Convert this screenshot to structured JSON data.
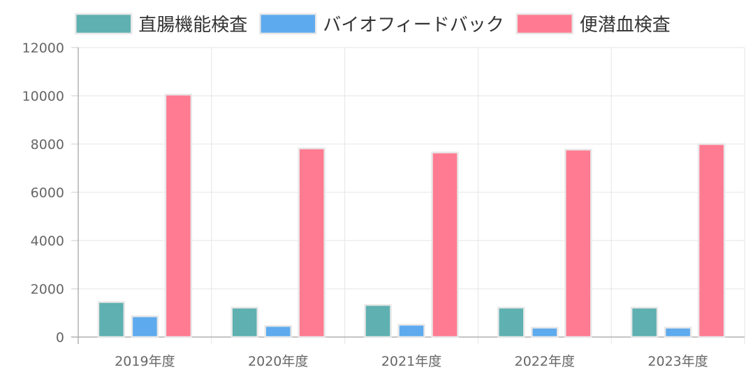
{
  "chart_data": {
    "type": "bar",
    "categories": [
      "2019年度",
      "2020年度",
      "2021年度",
      "2022年度",
      "2023年度"
    ],
    "series": [
      {
        "name": "直腸機能検査",
        "values": [
          1450,
          1220,
          1330,
          1220,
          1220
        ],
        "color": "#5fb0b0"
      },
      {
        "name": "バイオフィードバック",
        "values": [
          860,
          460,
          510,
          390,
          390
        ],
        "color": "#5eaaee"
      },
      {
        "name": "便潜血検査",
        "values": [
          10050,
          7820,
          7650,
          7770,
          8000
        ],
        "color": "#ff7b91"
      }
    ],
    "ylim": [
      0,
      12000
    ],
    "yticks": [
      0,
      2000,
      4000,
      6000,
      8000,
      10000,
      12000
    ],
    "grid": true,
    "legend": "top-center"
  }
}
